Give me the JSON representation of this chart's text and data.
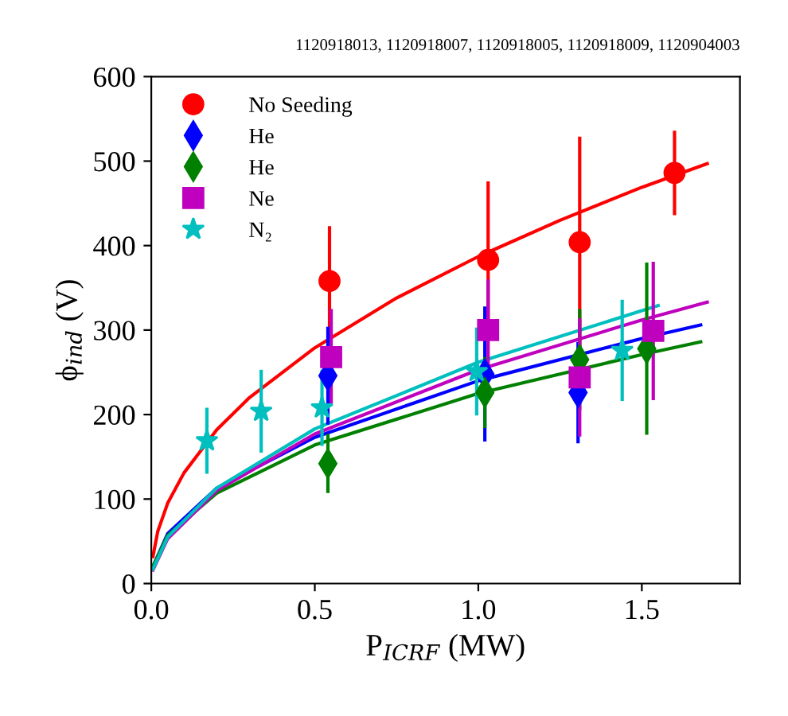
{
  "chart_data": {
    "type": "scatter",
    "title": "1120918013, 1120918007, 1120918005, 1120918009, 1120904003",
    "xlabel": "P$_{ICRF}$ (MW)",
    "ylabel": "ϕ$_{ind}$ (V)",
    "xlim": [
      0,
      1.8
    ],
    "ylim": [
      0,
      600
    ],
    "xticks": [
      {
        "value": 0,
        "label": "0.0"
      },
      0.5,
      {
        "value": 1,
        "label": "1.0"
      },
      1.5
    ],
    "yticks": [
      0,
      100,
      200,
      300,
      400,
      500,
      600
    ],
    "grid": false,
    "legend": "top left",
    "series": [
      {
        "name": "No Seeding",
        "marker": "circle",
        "color": "#ff0000",
        "x": [
          0.545,
          1.03,
          1.31,
          1.6
        ],
        "values": [
          358,
          383,
          404,
          486
        ],
        "errors": [
          65,
          93,
          125,
          50
        ]
      },
      {
        "name": "He",
        "marker": "diamond",
        "color": "#0000ff",
        "x": [
          0.54,
          1.02,
          1.305
        ],
        "values": [
          246,
          248,
          226
        ],
        "errors": [
          58,
          80,
          60
        ]
      },
      {
        "name": "He",
        "marker": "diamond",
        "color": "#008000",
        "x": [
          0.54,
          1.02,
          1.31,
          1.515
        ],
        "values": [
          142,
          226,
          265,
          278
        ],
        "errors": [
          35,
          42,
          60,
          102
        ]
      },
      {
        "name": "Ne",
        "marker": "square",
        "color": "#bf00bf",
        "x": [
          0.55,
          1.03,
          1.31,
          1.535
        ],
        "values": [
          268,
          300,
          244,
          299
        ],
        "errors": [
          57,
          60,
          70,
          82
        ]
      },
      {
        "name": "N₂",
        "marker": "star",
        "color": "#00bfbf",
        "x": [
          0.17,
          0.336,
          0.522,
          0.995,
          1.44
        ],
        "values": [
          169,
          204,
          208,
          251,
          276
        ],
        "errors": [
          39,
          49,
          45,
          52,
          60
        ]
      },
      {
        "type": "line",
        "marker": "none",
        "color": "#ff0000",
        "x": [
          0.005,
          0.02,
          0.05,
          0.1,
          0.2,
          0.3,
          0.5,
          0.75,
          1,
          1.25,
          1.5,
          1.7
        ],
        "values": [
          32,
          62,
          95,
          131,
          182,
          220,
          279,
          338,
          387,
          430,
          469,
          497
        ]
      },
      {
        "type": "line",
        "marker": "none",
        "color": "#0000ff",
        "x": [
          0.005,
          0.05,
          0.2,
          0.5,
          1,
          1.5,
          1.68
        ],
        "values": [
          20,
          59,
          113,
          173,
          240,
          290,
          306
        ]
      },
      {
        "type": "line",
        "marker": "none",
        "color": "#008000",
        "x": [
          0.005,
          0.05,
          0.2,
          0.5,
          1,
          1.5,
          1.68
        ],
        "values": [
          20,
          57,
          107,
          164,
          225,
          271,
          286
        ]
      },
      {
        "type": "line",
        "marker": "none",
        "color": "#bf00bf",
        "x": [
          0.005,
          0.05,
          0.2,
          0.5,
          1,
          1.5,
          1.7
        ],
        "values": [
          16,
          53,
          110,
          177,
          253,
          312,
          333
        ]
      },
      {
        "type": "line",
        "marker": "none",
        "color": "#00bfbf",
        "x": [
          0.005,
          0.05,
          0.2,
          0.5,
          1,
          1.5,
          1.55
        ],
        "values": [
          17,
          55,
          113,
          183,
          262,
          323,
          329
        ]
      }
    ]
  }
}
